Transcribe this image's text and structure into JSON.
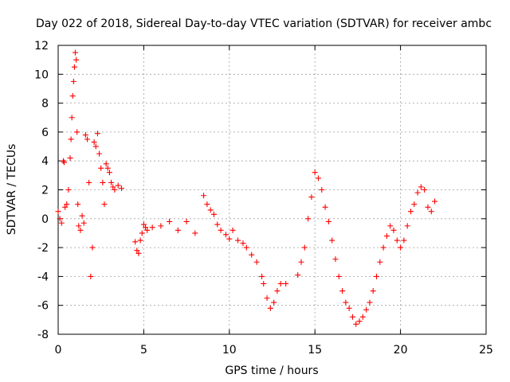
{
  "chart_data": {
    "type": "scatter",
    "title": "Day 022 of 2018, Sidereal Day-to-day VTEC variation (SDTVAR) for receiver ambc",
    "xlabel": "GPS time / hours",
    "ylabel": "SDTVAR / TECUs",
    "xlim": [
      0,
      25
    ],
    "ylim": [
      -8,
      12
    ],
    "xticks": [
      "0",
      "5",
      "10",
      "15",
      "20",
      "25"
    ],
    "yticks": [
      "-8",
      "-6",
      "-4",
      "-2",
      "0",
      "2",
      "4",
      "6",
      "8",
      "10",
      "12"
    ],
    "grid": true,
    "marker": "plus",
    "color": "#ff0000",
    "series": [
      {
        "name": "SDTVAR",
        "x": [
          0.0,
          0.1,
          0.2,
          0.3,
          0.35,
          0.4,
          0.5,
          0.6,
          0.7,
          0.75,
          0.8,
          0.85,
          0.9,
          0.95,
          1.0,
          1.05,
          1.1,
          1.15,
          1.2,
          1.3,
          1.4,
          1.5,
          1.6,
          1.7,
          1.8,
          1.9,
          2.0,
          2.1,
          2.2,
          2.3,
          2.4,
          2.5,
          2.6,
          2.7,
          2.8,
          2.9,
          3.0,
          3.1,
          3.2,
          3.3,
          3.5,
          3.7,
          4.5,
          4.6,
          4.7,
          4.8,
          4.9,
          5.0,
          5.1,
          5.2,
          5.5,
          6.0,
          6.5,
          7.0,
          7.5,
          8.0,
          8.5,
          8.7,
          8.9,
          9.1,
          9.3,
          9.5,
          9.8,
          10.0,
          10.2,
          10.5,
          10.8,
          11.0,
          11.3,
          11.6,
          11.9,
          12.0,
          12.2,
          12.4,
          12.6,
          12.8,
          13.0,
          13.3,
          14.0,
          14.2,
          14.4,
          14.6,
          14.8,
          15.0,
          15.2,
          15.4,
          15.6,
          15.8,
          16.0,
          16.2,
          16.4,
          16.6,
          16.8,
          17.0,
          17.2,
          17.4,
          17.6,
          17.8,
          18.0,
          18.2,
          18.4,
          18.6,
          18.8,
          19.0,
          19.2,
          19.4,
          19.6,
          19.8,
          20.0,
          20.2,
          20.4,
          20.6,
          20.8,
          21.0,
          21.2,
          21.4,
          21.6,
          21.8,
          22.0
        ],
        "y": [
          0.5,
          0.0,
          -0.3,
          4.0,
          3.9,
          0.8,
          1.0,
          2.0,
          4.2,
          5.5,
          7.0,
          8.5,
          9.5,
          10.5,
          11.5,
          11.0,
          6.0,
          1.0,
          -0.5,
          -0.8,
          0.2,
          -0.3,
          5.8,
          5.5,
          2.5,
          -4.0,
          -2.0,
          5.3,
          5.0,
          5.9,
          4.5,
          3.5,
          2.5,
          1.0,
          3.8,
          3.5,
          3.2,
          2.5,
          2.2,
          2.0,
          2.3,
          2.1,
          -1.6,
          -2.2,
          -2.4,
          -1.5,
          -1.0,
          -0.4,
          -0.6,
          -0.8,
          -0.6,
          -0.5,
          -0.2,
          -0.8,
          -0.2,
          -1.0,
          1.6,
          1.0,
          0.6,
          0.3,
          -0.4,
          -0.8,
          -1.1,
          -1.4,
          -0.8,
          -1.5,
          -1.7,
          -2.0,
          -2.5,
          -3.0,
          -4.0,
          -4.5,
          -5.5,
          -6.2,
          -5.8,
          -5.0,
          -4.5,
          -4.5,
          -3.9,
          -3.0,
          -2.0,
          0.0,
          1.5,
          3.2,
          2.8,
          2.0,
          0.8,
          -0.2,
          -1.5,
          -2.8,
          -4.0,
          -5.0,
          -5.8,
          -6.2,
          -6.8,
          -7.3,
          -7.1,
          -6.8,
          -6.3,
          -5.8,
          -5.0,
          -4.0,
          -3.0,
          -2.0,
          -1.2,
          -0.5,
          -0.8,
          -1.5,
          -2.0,
          -1.5,
          -0.5,
          0.5,
          1.0,
          1.8,
          2.2,
          2.0,
          0.8,
          0.5,
          1.2
        ]
      }
    ]
  }
}
